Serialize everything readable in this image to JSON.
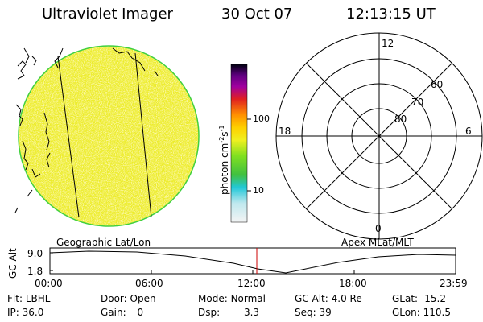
{
  "header": {
    "instrument": "Ultraviolet Imager",
    "date": "30 Oct 07",
    "time": "12:13:15 UT"
  },
  "colorbar": {
    "label_unit": "photon cm",
    "label_exp": "-2",
    "label_s": "s",
    "label_exp2": "-1",
    "ticks": [
      "100",
      "10"
    ]
  },
  "polar_plot": {
    "mlt_labels": {
      "top": "12",
      "left": "18",
      "right": "6",
      "bottom": "0"
    },
    "lat_labels": [
      "60",
      "70",
      "80"
    ]
  },
  "footer_labels": {
    "left_map": "Geographic Lat/Lon",
    "right_map": "Apex MLat/MLT"
  },
  "altitude_plot": {
    "ylabel": "GC Alt",
    "yticks": [
      "9.0",
      "1.8"
    ],
    "xticks": [
      "00:00",
      "06:00",
      "12:00",
      "18:00",
      "23:59"
    ],
    "colors": {
      "marker": "#cc0000",
      "curve": "#000000"
    }
  },
  "status": {
    "flt": {
      "label": "Flt:",
      "value": "LBHL"
    },
    "ip": {
      "label": "IP:",
      "value": "36.0"
    },
    "door": {
      "label": "Door:",
      "value": "Open"
    },
    "gain": {
      "label": "Gain:",
      "value": "0"
    },
    "mode": {
      "label": "Mode:",
      "value": "Normal"
    },
    "dsp": {
      "label": "Dsp:",
      "value": "3.3"
    },
    "gcalt": {
      "label": "GC Alt:",
      "value": "4.0 Re"
    },
    "seq": {
      "label": "Seq:",
      "value": "39"
    },
    "glat": {
      "label": "GLat:",
      "value": "-15.2"
    },
    "glon": {
      "label": "GLon:",
      "value": "110.5"
    }
  }
}
